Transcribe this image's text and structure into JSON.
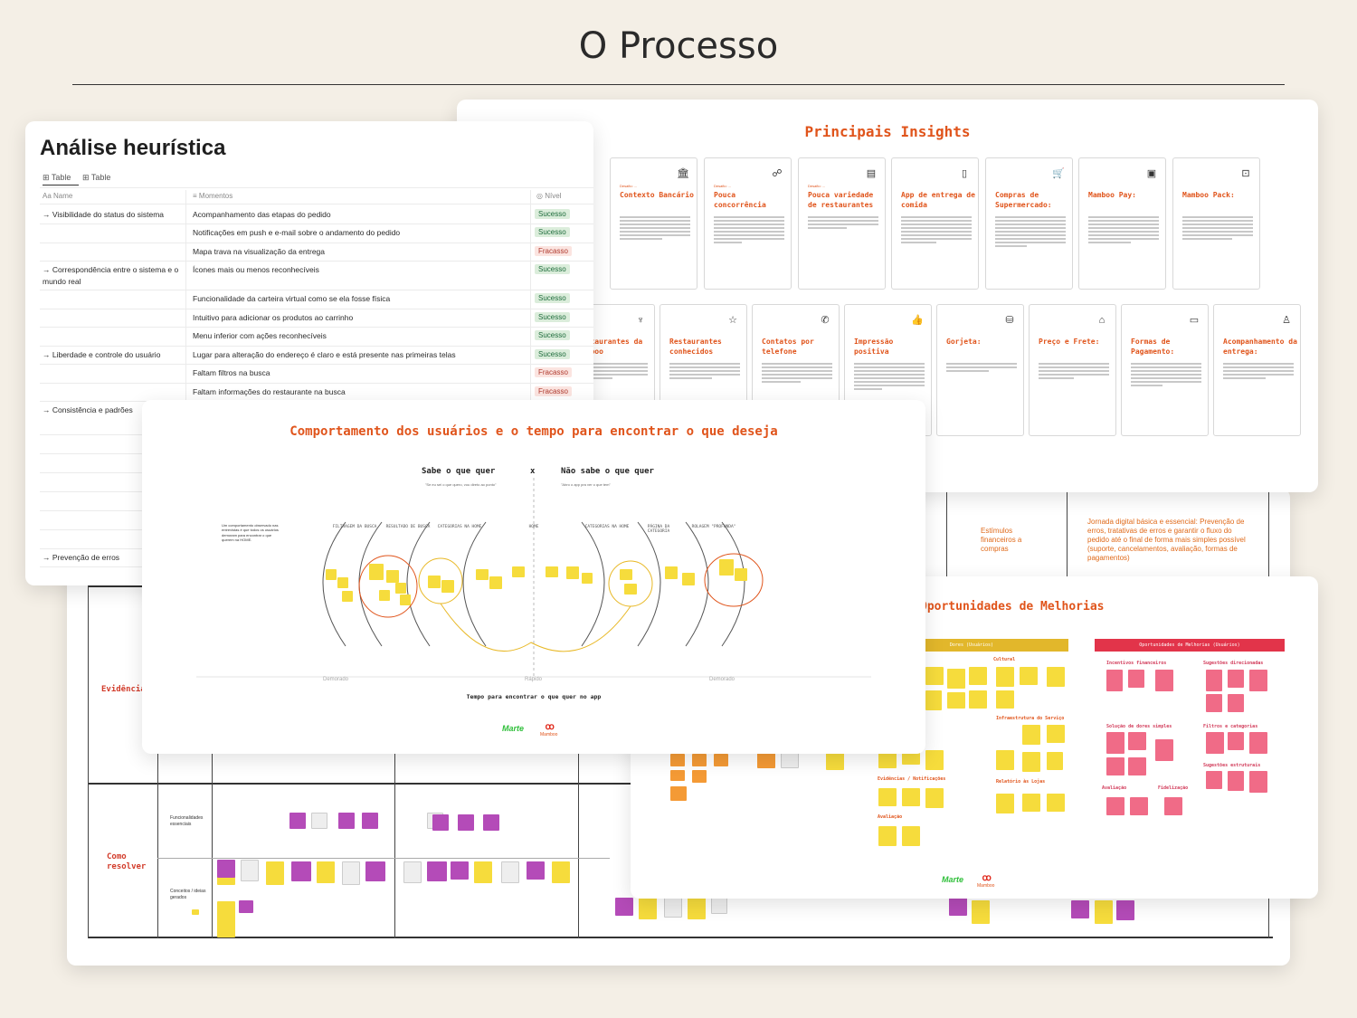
{
  "page": {
    "title": "O Processo"
  },
  "heuristic": {
    "title": "Análise heurística",
    "tabs": [
      "Table",
      "Table"
    ],
    "columns": {
      "name": "Name",
      "moments": "Momentos",
      "level": "Nível"
    },
    "rows": [
      {
        "name": "→ Visibilidade do status do sistema",
        "moment": "Acompanhamento das etapas do pedido",
        "level": "Sucesso"
      },
      {
        "name": "",
        "moment": "Notificações em push e e-mail sobre o andamento do pedido",
        "level": "Sucesso"
      },
      {
        "name": "",
        "moment": "Mapa trava na visualização da entrega",
        "level": "Fracasso"
      },
      {
        "name": "→ Correspondência entre o sistema e o mundo real",
        "moment": "Ícones mais ou menos reconhecíveis",
        "level": "Sucesso"
      },
      {
        "name": "",
        "moment": "Funcionalidade da carteira virtual como se ela fosse física",
        "level": "Sucesso"
      },
      {
        "name": "",
        "moment": "Intuitivo para adicionar os produtos ao carrinho",
        "level": "Sucesso"
      },
      {
        "name": "",
        "moment": "Menu inferior com ações reconhecíveis",
        "level": "Sucesso"
      },
      {
        "name": "→ Liberdade e controle do usuário",
        "moment": "Lugar para alteração do endereço é claro e está presente nas primeiras telas",
        "level": "Sucesso"
      },
      {
        "name": "",
        "moment": "Faltam filtros na busca",
        "level": "Fracasso"
      },
      {
        "name": "",
        "moment": "Faltam informações do restaurante na busca",
        "level": "Fracasso"
      },
      {
        "name": "→ Consistência e padrões",
        "moment": "",
        "level": ""
      },
      {
        "name": "→ Prevenção de erros",
        "moment": "",
        "level": ""
      }
    ]
  },
  "insights": {
    "title": "Principais Insights",
    "row1": [
      {
        "title": "Contexto Bancário",
        "icon": "bank-icon",
        "glyph": "🏛",
        "tag": "Desafio: ..."
      },
      {
        "title": "Pouca concorrência",
        "icon": "people-icon",
        "glyph": "☍",
        "tag": "Desafio: ..."
      },
      {
        "title": "Pouca variedade de restaurantes",
        "icon": "menu-icon",
        "glyph": "▤",
        "tag": "Desafio: ..."
      },
      {
        "title": "App de entrega de comida",
        "icon": "phone-icon",
        "glyph": "▯",
        "tag": ""
      },
      {
        "title": "Compras de Supermercado:",
        "icon": "cart-icon",
        "glyph": "🛒",
        "tag": ""
      },
      {
        "title": "Mamboo Pay:",
        "icon": "wallet-icon",
        "glyph": "▣",
        "tag": ""
      },
      {
        "title": "Mamboo Pack:",
        "icon": "bag-icon",
        "glyph": "⊡",
        "tag": ""
      }
    ],
    "row2": [
      {
        "title": "Restaurantes da Mamboo",
        "icon": "kfc-icon",
        "glyph": "♆"
      },
      {
        "title": "Restaurantes conhecidos",
        "icon": "star-icon",
        "glyph": "☆"
      },
      {
        "title": "Contatos por telefone",
        "icon": "phone-call-icon",
        "glyph": "✆"
      },
      {
        "title": "Impressão positiva",
        "icon": "thumbs-up-icon",
        "glyph": "👍"
      },
      {
        "title": "Gorjeta:",
        "icon": "tip-icon",
        "glyph": "⛁"
      },
      {
        "title": "Preço e Frete:",
        "icon": "tag-icon",
        "glyph": "⌂"
      },
      {
        "title": "Formas de Pagamento:",
        "icon": "card-icon",
        "glyph": "▭"
      },
      {
        "title": "Acompanhamento da entrega:",
        "icon": "person-pin-icon",
        "glyph": "♙"
      }
    ]
  },
  "behaviour": {
    "title": "Comportamento dos usuários e o tempo para encontrar o que deseja",
    "left_header": "Sabe o que quer",
    "separator": "x",
    "right_header": "Não sabe o que quer",
    "left_quote": "\"Se eu sei o que quero, vou direto ao ponto\"",
    "right_quote": "\"Abro o app pra ver o que tem\"",
    "side_note": "Um comportamento observado nas entrevistas é que todos os usuários demoram para encontrar o que querem na HOME.",
    "stages": [
      "FILTRAGEM DA BUSCA",
      "RESULTADO DE BUSCA",
      "CATEGORIAS NA HOME",
      "HOME",
      "CATEGORIAS NA HOME",
      "PÁGINA DA CATEGORIA",
      "ROLAGEM \"PROFUNDA\""
    ],
    "axis": [
      "Demorado",
      "Rápido",
      "Demorado"
    ],
    "footer": "Tempo para encontrar o que quer no app"
  },
  "board": {
    "labels": [
      "Evidências",
      "Como resolver"
    ],
    "cells": [
      "Estímulos financeiros a compras",
      "Jornada digital básica e essencial: Prevenção de erros, tratativas de erros e garantir o fluxo do pedido até o final de forma mais simples possível (suporte, cancelamentos, avaliação, formas de pagamentos)"
    ],
    "row_labels": [
      "Funcionalidades essenciais",
      "Conceitos / ideias gerados"
    ]
  },
  "oportunidades": {
    "title": "Oportunidades de Melhorias",
    "left_bar": "Dores (Usuários)",
    "right_bar": "Oportunidades de Melhorias (Usuários)",
    "left_groups": [
      "Cultural",
      "Infraestrutura do Serviço",
      "Evidências / Notificações",
      "Relatório às Lojas",
      "Avaliação"
    ],
    "right_groups": [
      "Incentivos financeiros",
      "Sugestões direcionadas",
      "Solução de dores simples",
      "Filtros e categorias",
      "Sugestões estruturais",
      "Avaliação",
      "Fidelização"
    ]
  },
  "brand": {
    "marte": "Marte",
    "mamboo": "Mamboo"
  },
  "colors": {
    "accent": "#e0541b",
    "success": "#dbeddb",
    "failure": "#fbe4e0"
  }
}
